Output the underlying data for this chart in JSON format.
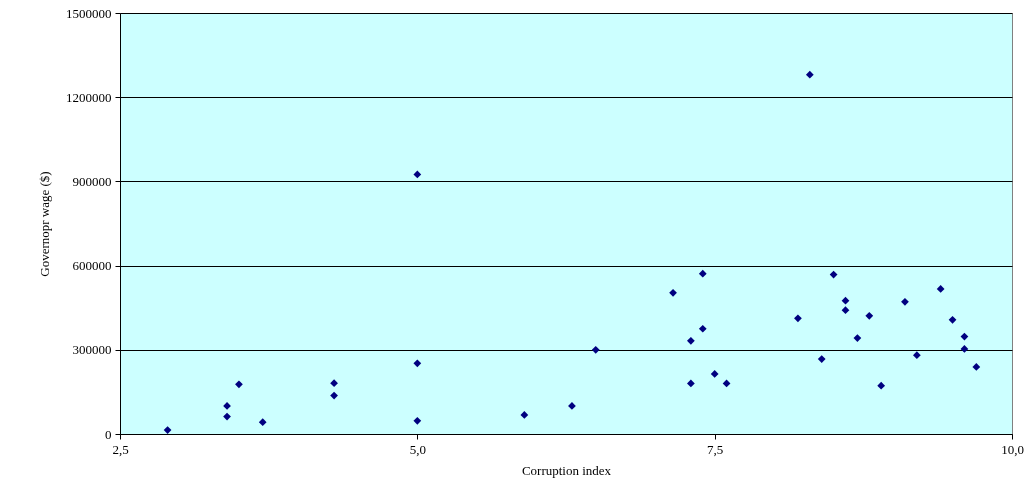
{
  "chart_data": {
    "type": "scatter",
    "xlabel": "Corruption index",
    "ylabel": "Governopr wage ($)",
    "x": [
      2.9,
      3.4,
      3.4,
      3.5,
      3.7,
      4.3,
      4.3,
      5.0,
      5.0,
      5.0,
      5.9,
      6.3,
      6.5,
      7.15,
      7.4,
      7.4,
      7.3,
      7.3,
      7.5,
      7.6,
      8.2,
      8.3,
      8.5,
      8.4,
      8.6,
      8.6,
      8.7,
      8.8,
      8.9,
      9.1,
      9.2,
      9.4,
      9.5,
      9.6,
      9.6,
      9.7
    ],
    "series": [
      {
        "color": "#000080",
        "values": [
          14000,
          100000,
          62000,
          177000,
          42000,
          181000,
          137000,
          925000,
          252000,
          47000,
          68000,
          100000,
          300000,
          503000,
          571000,
          375000,
          332000,
          180000,
          214000,
          180000,
          412000,
          1280000,
          568000,
          267000,
          475000,
          441000,
          342000,
          421000,
          172000,
          471000,
          281000,
          517000,
          407000,
          347000,
          303000,
          239000
        ]
      }
    ],
    "xlim": [
      2.5,
      10
    ],
    "xticks": [
      {
        "value": 2.5,
        "label": "2,5"
      },
      {
        "value": 5,
        "label": "5,0"
      },
      {
        "value": 7.5,
        "label": "7,5"
      },
      {
        "value": 10,
        "label": "10,0"
      }
    ],
    "ylim": [
      0,
      1500000
    ],
    "yticks": [
      0,
      300000,
      600000,
      900000,
      1200000,
      1500000
    ],
    "grid": "y",
    "marker": "diamond"
  }
}
